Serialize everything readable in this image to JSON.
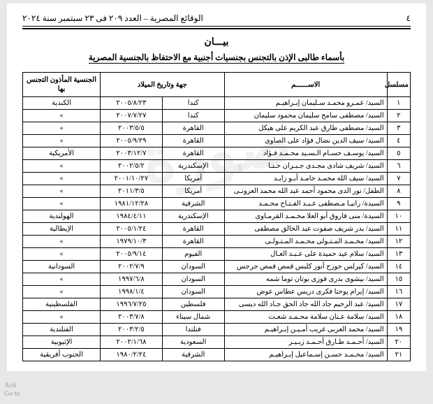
{
  "header": {
    "page_number": "٤",
    "gazette": "الوقائع المصرية – العدد ٢٠٩ فى ٢٣ سبتمبر سنة ٢٠٢٤"
  },
  "title": "بيـــان",
  "subtitle": "بأسماء طالبى الإذن بالتجنس بجنسيات أجنبية مع الاحتفاظ بالجنسية المصرية",
  "columns": {
    "seq": "مسلسل",
    "name": "الاســــــم",
    "place": "جهة وتاريخ الميلاد",
    "nat": "الجنسية المأذون التجنس بها"
  },
  "rows": [
    {
      "n": "١",
      "name": "السيد/ عمـرو محمـد سـليمان إبـراهيـم",
      "place": "كندا",
      "date": "٢٠٠٥/٨/٢٣",
      "nat": "الكندية"
    },
    {
      "n": "٢",
      "name": "السيد/ مصطفى سامح سليمان محمود سليمان",
      "place": "كندا",
      "date": "٢٠٠٧/٧/٢٧",
      "nat": "»"
    },
    {
      "n": "٣",
      "name": "السيد/ مصطفى طارق عبد الكريم على هيكل",
      "place": "القاهرة",
      "date": "٢٠٠٣/٥/٥",
      "nat": "»"
    },
    {
      "n": "٤",
      "name": "السيد/ سيف الدين نضال فؤاد على الصاوى",
      "place": "القاهرة",
      "date": "٢٠٠٥/٩/٢٩",
      "nat": "»"
    },
    {
      "n": "٥",
      "name": "السيد/ يوسـف حسـام الـسـيد محـمـد فـؤاد",
      "place": "القاهرة",
      "date": "٢٠٠٣/١٢/٧",
      "nat": "الأمريكية"
    },
    {
      "n": "٦",
      "name": "السيد/ شريف شادى مجـدى جـبـران حـنـا",
      "place": "الإسكندرية",
      "date": "٢٠٠٢/٥/٢",
      "nat": "»"
    },
    {
      "n": "٧",
      "name": "السيد/ سيف الله محمـد حامـد أبـو زايـد",
      "place": "أمريكا",
      "date": "٢٠٠١/١٠/٢٧",
      "nat": "»"
    },
    {
      "n": "٨",
      "name": "الطفل/ نور الدى محمود أحمد عبد الله محمد العزونـى",
      "place": "أمريكا",
      "date": "٢٠١١/٣/٥",
      "nat": "»"
    },
    {
      "n": "٩",
      "name": "السيدة/ رانيـا مـصطفى عـبـد الفـتـاح محـمـد",
      "place": "الشرقية",
      "date": "١٩٨١/١٢/٢٨",
      "nat": "»"
    },
    {
      "n": "١٠",
      "name": "السيدة/ منى فاروق أبو العلا محـمـد القرمـاوى",
      "place": "الإسكندرية",
      "date": "١٩٨٤/٤/١١",
      "nat": "الهولندية"
    },
    {
      "n": "١١",
      "name": "السيد/ بدر شريف صفوت عبد الخالق مصطفى",
      "place": "القاهرة",
      "date": "٢٠٠٥/١/٢٤",
      "nat": "الإيطالية"
    },
    {
      "n": "١٢",
      "name": "السيد/ محـمـد المـتـولى محـمـد المـتـولـى",
      "place": "القاهرة",
      "date": "١٩٧٩/١٠/٣",
      "nat": "»"
    },
    {
      "n": "١٣",
      "name": "السيد/ سلام عيد حميدة على عـبـد العـال",
      "place": "الفيوم",
      "date": "٢٠٠٥/٩/١٤",
      "nat": "»"
    },
    {
      "n": "١٤",
      "name": "السيد/ كيرلس جورج أنور كلبس قمص قمص جرجس",
      "place": "السودان",
      "date": "٢٠٠٢/٧/٩",
      "nat": "السودانية"
    },
    {
      "n": "١٥",
      "name": "السيد/ بيشوى بدرى فوزى بوتان توما شمه",
      "place": "السودان",
      "date": "١٩٩٧/٦/٨",
      "nat": "»"
    },
    {
      "n": "١٦",
      "name": "السيد/ إيرام يوحنا فكرى دريس عطاس عوض",
      "place": "السودان",
      "date": "١٩٩٨/١/٤",
      "nat": "»"
    },
    {
      "n": "١٧",
      "name": "السيد/ عبد الرحيم جاد الله جاد الحق جـاد الله ديسى",
      "place": "فلسطين",
      "date": "١٩٩٦/٧/٢٥",
      "nat": "الفلسطينية"
    },
    {
      "n": "١٨",
      "name": "السيد/ سلامة عـنان سلامة محـمـد شعـت",
      "place": "شمال سيناء",
      "date": "٢٠٠٣/٧/٨",
      "nat": "»"
    },
    {
      "n": "١٩",
      "name": "السيد/ محمد العربى غريب أمـيـن إبـراهيـم",
      "place": "فنلندا",
      "date": "٢٠٠٣/٢/٥",
      "nat": "الفنلندية"
    },
    {
      "n": "٢٠",
      "name": "السيد/ أحـمـد طـارق أحـمـد زبـيـر",
      "place": "السعودية",
      "date": "٢٠٠٢/١/٦٨",
      "nat": "الإثيوبية"
    },
    {
      "n": "٢١",
      "name": "السيد/ محـمـد حسـن إسـماعيل إبـراهيـم",
      "place": "الشرقية",
      "date": "١٩٨٠/٢/٢٤",
      "nat": "الجنوب أفريقية"
    }
  ],
  "activate": {
    "l1": "Acti",
    "l2": "Go to"
  }
}
